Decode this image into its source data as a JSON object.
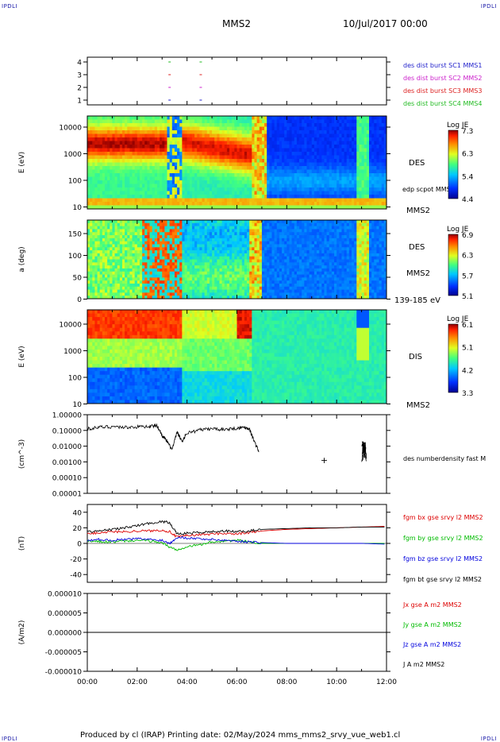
{
  "header": {
    "corner_tl": "IPDLI",
    "corner_tr": "IPDLI",
    "corner_bl": "IPDLI",
    "corner_br": "IPDLI",
    "spacecraft": "MMS2",
    "datetime": "10/Jul/2017 00:00"
  },
  "footer": {
    "credit": "Produced by cl (IRAP)   Printing date: 02/May/2024   mms_mms2_srvy_vue_web1.cl"
  },
  "colors": {
    "mms1": "#2222cc",
    "mms2": "#cc22cc",
    "mms3": "#dd2222",
    "mms4": "#22bb22",
    "bx": "#dd0000",
    "by": "#00bb00",
    "bz": "#0000dd",
    "bt": "#000000"
  },
  "chart_data": [
    {
      "type": "scatter",
      "name": "burst-availability",
      "ylim": [
        0.5,
        4.5
      ],
      "yticks": [
        "4",
        "3",
        "2",
        "1"
      ],
      "legend": [
        {
          "label": "des dist burst SC1 MMS1",
          "color": "#2222cc"
        },
        {
          "label": "des dist burst SC2 MMS2",
          "color": "#cc22cc"
        },
        {
          "label": "des dist burst SC3 MMS3",
          "color": "#dd2222"
        },
        {
          "label": "des dist burst SC4 MMS4",
          "color": "#22bb22"
        }
      ],
      "marks_hours": [
        3.3,
        4.55
      ],
      "mark_colors": [
        "#2222cc",
        "#cc22cc",
        "#dd2222",
        "#22bb22"
      ]
    },
    {
      "type": "heatmap",
      "name": "des-energy-spectrogram",
      "ylabel": "E (eV)",
      "yscale": "log",
      "ylim": [
        10,
        30000
      ],
      "yticks": [
        "10000",
        "1000",
        "100",
        "10"
      ],
      "label": "DES",
      "annotation": "edp scpot MMS2",
      "bottom_label": "MMS2",
      "colorbar": {
        "title": "Log JE",
        "ticks": [
          "7.3",
          "6.3",
          "5.4",
          "4.4"
        ]
      }
    },
    {
      "type": "heatmap",
      "name": "des-pitch-angle",
      "ylabel": "a (deg)",
      "ylim": [
        0,
        180
      ],
      "yticks": [
        "150",
        "100",
        "50",
        "0"
      ],
      "label": "DES",
      "sublabel": "MMS2",
      "bottom_label": "139-185 eV",
      "colorbar": {
        "title": "Log JE",
        "ticks": [
          "6.9",
          "6.3",
          "5.7",
          "5.1"
        ]
      }
    },
    {
      "type": "heatmap",
      "name": "dis-energy-spectrogram",
      "ylabel": "E (eV)",
      "yscale": "log",
      "ylim": [
        10,
        30000
      ],
      "yticks": [
        "10000",
        "1000",
        "100",
        "10"
      ],
      "label": "DIS",
      "bottom_label": "MMS2",
      "colorbar": {
        "title": "Log JE",
        "ticks": [
          "6.1",
          "5.1",
          "4.2",
          "3.3"
        ]
      }
    },
    {
      "type": "line",
      "name": "electron-density",
      "ylabel": "(cm^-3)",
      "yscale": "log",
      "ylim": [
        0.0001,
        1.0
      ],
      "yticks": [
        "1.00000",
        "0.10000",
        "0.01000",
        "0.00100",
        "0.00010",
        "0.00001"
      ],
      "legend": [
        {
          "label": "des numberdensity fast M",
          "color": "#000000"
        }
      ],
      "x_hours": [
        0.0,
        0.5,
        1.0,
        1.5,
        2.0,
        2.5,
        2.8,
        3.0,
        3.2,
        3.4,
        3.6,
        3.8,
        4.0,
        4.5,
        5.0,
        5.5,
        6.0,
        6.3,
        6.5,
        6.7,
        6.9
      ],
      "y": [
        0.13,
        0.16,
        0.18,
        0.16,
        0.17,
        0.19,
        0.2,
        0.05,
        0.02,
        0.006,
        0.08,
        0.02,
        0.07,
        0.11,
        0.13,
        0.12,
        0.14,
        0.16,
        0.13,
        0.02,
        0.004
      ],
      "extra_points": [
        {
          "x": 9.5,
          "y": 0.0013
        }
      ],
      "cluster_hours": [
        11.0,
        11.2
      ],
      "cluster_range": [
        0.001,
        0.02
      ]
    },
    {
      "type": "line",
      "name": "magnetic-field",
      "ylabel": "(nT)",
      "ylim": [
        -50,
        50
      ],
      "yticks": [
        "40",
        "20",
        "0",
        "-20",
        "-40"
      ],
      "x_hours": [
        0,
        0.5,
        1,
        1.5,
        2,
        2.5,
        3,
        3.3,
        3.6,
        4,
        4.5,
        5,
        5.5,
        6,
        6.5,
        7,
        8,
        9,
        10,
        11,
        12
      ],
      "series": [
        {
          "name": "fgm bx gse srvy l2 MMS2",
          "color": "#dd0000",
          "values": [
            12,
            14,
            15,
            15,
            16,
            16,
            17,
            15,
            8,
            10,
            11,
            12,
            13,
            12,
            14,
            16,
            18,
            19,
            20,
            21,
            22
          ]
        },
        {
          "name": "fgm by gse srvy l2 MMS2",
          "color": "#00bb00",
          "values": [
            3,
            2,
            2,
            3,
            4,
            3,
            1,
            -5,
            -8,
            -4,
            -2,
            2,
            3,
            4,
            2,
            0,
            0,
            0,
            0,
            0,
            0
          ]
        },
        {
          "name": "fgm bz gse srvy l2 MMS2",
          "color": "#0000dd",
          "values": [
            4,
            5,
            4,
            5,
            6,
            5,
            4,
            0,
            8,
            7,
            6,
            5,
            4,
            3,
            2,
            1,
            0,
            0,
            0,
            0,
            -1
          ]
        },
        {
          "name": "fgm bt gse srvy l2 MMS2",
          "color": "#000000",
          "values": [
            15,
            16,
            18,
            20,
            23,
            26,
            28,
            27,
            12,
            13,
            14,
            15,
            16,
            15,
            16,
            18,
            19,
            20,
            20,
            21,
            21
          ]
        }
      ]
    },
    {
      "type": "line",
      "name": "current-density",
      "ylabel": "(A/m2)",
      "ylim": [
        -1e-05,
        1e-05
      ],
      "yticks": [
        "0.000010",
        "0.000005",
        "0.000000",
        "-0.000005",
        "-0.000010"
      ],
      "xticks": [
        "00:00",
        "02:00",
        "04:00",
        "06:00",
        "08:00",
        "10:00",
        "12:00"
      ],
      "xlim_hours": [
        0,
        12
      ],
      "series": [
        {
          "name": "Jx gse A m2 MMS2",
          "color": "#dd0000",
          "values": [
            0,
            0
          ]
        },
        {
          "name": "Jy gse A m2 MMS2",
          "color": "#00bb00",
          "values": [
            0,
            0
          ]
        },
        {
          "name": "Jz gse A m2 MMS2",
          "color": "#0000dd",
          "values": [
            0,
            0
          ]
        },
        {
          "name": "J A m2 MMS2",
          "color": "#000000",
          "values": [
            0,
            0
          ]
        }
      ]
    }
  ]
}
